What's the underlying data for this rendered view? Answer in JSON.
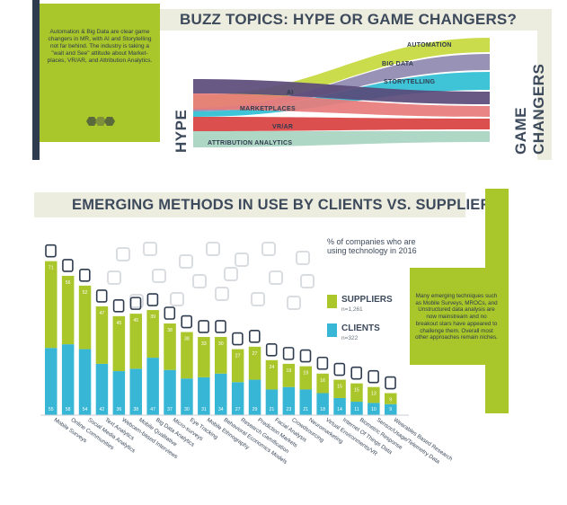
{
  "top": {
    "title": "BUZZ TOPICS: HYPE OR GAME CHANGERS?",
    "note": "Automation & Big Data are clear game changers in MR, with AI and Storytelling not far behind. The industry is taking a \"wait and See\" attitude about Market-places, VR/AR, and Attribution Analytics.",
    "hype_label": "HYPE",
    "game_changers_label": "GAME CHANGERS",
    "streams": [
      {
        "label": "AUTOMATION",
        "color": "#c5d93c"
      },
      {
        "label": "BIG DATA",
        "color": "#8f8ab0"
      },
      {
        "label": "STORYTELLING",
        "color": "#2fbfd4"
      },
      {
        "label": "AI",
        "color": "#5a4a7a"
      },
      {
        "label": "MARKETPLACES",
        "color": "#e87b7b"
      },
      {
        "label": "VR/AR",
        "color": "#d94040"
      },
      {
        "label": "ATTRIBUTION ANALYTICS",
        "color": "#a8d4c0"
      }
    ]
  },
  "bottom": {
    "title": "EMERGING METHODS IN USE BY CLIENTS VS. SUPPLIER",
    "note": "Many emerging techniques such as Mobile Surveys, MROCs, and Unstructured data analysis are now mainstream and no breakout stars have appeared to challenge them. Overall most other approaches remain niches.",
    "legend_title": "% of companies who are using technology in 2016",
    "suppliers_label": "SUPPLIERS",
    "suppliers_n": "n=1,261",
    "clients_label": "CLIENTS",
    "clients_n": "n=322"
  },
  "colors": {
    "suppliers": "#a9c62a",
    "clients": "#38b6d6",
    "dark": "#2f3b4e"
  },
  "chart_data": {
    "type": "bar",
    "categories": [
      "Mobile Surveys",
      "Online Communities",
      "Social Media Analytics",
      "Text Analytics",
      "Webcam-based Interviews",
      "Mobile Qualitative",
      "Big Data Analytics",
      "Micro-surveys",
      "Eye Tracking",
      "Mobile Ethnography",
      "Behavioral Economics Models",
      "Research Gamification",
      "Prediction Markets",
      "Facial Analysis",
      "Crowdsourcing",
      "Neuromarketing",
      "Virtual Environments/VR",
      "Internet Of Things Data",
      "Biometric Response",
      "Sensor/Usage/Telemetry Data",
      "Wearables Based Research"
    ],
    "series": [
      {
        "name": "SUPPLIERS",
        "values": [
          71,
          56,
          52,
          47,
          45,
          45,
          39,
          38,
          38,
          33,
          30,
          27,
          27,
          24,
          19,
          19,
          16,
          15,
          15,
          13,
          9
        ]
      },
      {
        "name": "CLIENTS",
        "values": [
          55,
          58,
          54,
          42,
          36,
          38,
          47,
          37,
          30,
          31,
          34,
          27,
          29,
          21,
          23,
          21,
          18,
          14,
          11,
          10,
          9
        ]
      }
    ]
  }
}
